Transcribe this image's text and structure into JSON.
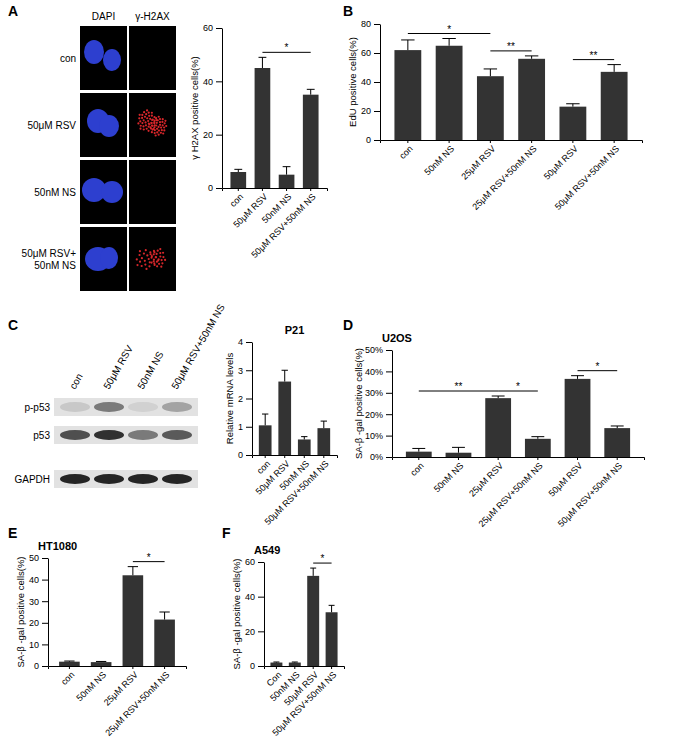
{
  "panel_labels": [
    "A",
    "B",
    "C",
    "D",
    "E",
    "F"
  ],
  "micrographs": {
    "columns": [
      "DAPI",
      "γ-H2AX"
    ],
    "rows": [
      [
        "con"
      ],
      [
        "50μM RSV"
      ],
      [
        "50nM NS"
      ],
      [
        "50μM RSV+",
        "50nM NS"
      ]
    ]
  },
  "blot": {
    "lanes": [
      "con",
      "50μM RSV",
      "50nM NS",
      "50μM RSV+50nM NS"
    ],
    "bands": [
      "p-p53",
      "p53",
      "GAPDH"
    ]
  },
  "chart_data": [
    {
      "type": "bar",
      "y_label": "γ H2AX positive cells(%)",
      "categories": [
        "con",
        "50μM RSV",
        "50nM NS",
        "50μM RSV+50nM NS"
      ],
      "values": [
        6,
        45,
        5,
        35
      ],
      "errors": [
        1,
        4,
        3,
        2
      ],
      "color": "#333333",
      "ylim": [
        0,
        60
      ],
      "yticks": [
        0,
        20,
        40,
        60
      ],
      "significance": [
        {
          "from": 1,
          "to": 3,
          "label": "*"
        }
      ]
    },
    {
      "type": "bar",
      "y_label": "EdU positive cells(%)",
      "categories": [
        "con",
        "50nM NS",
        "25μM RSV",
        "25μM RSV+50nM NS",
        "50μM RSV",
        "50μM RSV+50nM NS"
      ],
      "values": [
        62,
        65,
        44,
        56,
        23,
        47
      ],
      "errors": [
        7,
        5,
        5,
        2,
        2,
        5
      ],
      "color": "#333333",
      "ylim": [
        0,
        80
      ],
      "yticks": [
        0,
        20,
        40,
        60,
        80
      ],
      "significance": [
        {
          "from": 0,
          "to": 2,
          "label": "*"
        },
        {
          "from": 2,
          "to": 3,
          "label": "**"
        },
        {
          "from": 4,
          "to": 5,
          "label": "**"
        }
      ]
    },
    {
      "type": "bar",
      "title": "P21",
      "y_label": "Relative mRNA levels",
      "categories": [
        "con",
        "50μM RSV",
        "50nM NS",
        "50μM RSV+50nM NS"
      ],
      "values": [
        1.05,
        2.6,
        0.55,
        0.95
      ],
      "errors": [
        0.4,
        0.4,
        0.1,
        0.25
      ],
      "color": "#333333",
      "ylim": [
        0,
        4
      ],
      "yticks": [
        0,
        1,
        2,
        3,
        4
      ],
      "significance": []
    },
    {
      "type": "bar",
      "title": "U2OS",
      "y_label": "SA-β -gal positive cells(%)",
      "categories": [
        "con",
        "50nM NS",
        "25μM RSV",
        "25μM RSV+50nM NS",
        "50μM RSV",
        "50μM RSV+50nM NS"
      ],
      "values": [
        2.5,
        2,
        27.5,
        8.5,
        36.5,
        13.5
      ],
      "errors": [
        1.5,
        2.5,
        1,
        1,
        1.5,
        1
      ],
      "color": "#333333",
      "ylim": [
        0,
        50
      ],
      "yticks": [
        {
          "value": 0,
          "label": "0%"
        },
        {
          "value": 10,
          "label": "10%"
        },
        {
          "value": 20,
          "label": "20%"
        },
        {
          "value": 30,
          "label": "30%"
        },
        {
          "value": 40,
          "label": "40%"
        },
        {
          "value": 50,
          "label": "50%"
        }
      ],
      "significance": [
        {
          "from": 0,
          "to": 2,
          "label": "**"
        },
        {
          "from": 2,
          "to": 3,
          "label": "*"
        },
        {
          "from": 4,
          "to": 5,
          "label": "*"
        }
      ]
    },
    {
      "type": "bar",
      "title": "HT1080",
      "y_label": "SA-β -gal positive cells(%)",
      "categories": [
        "con",
        "50nM NS",
        "25μM RSV",
        "25μM RSV+50nM NS"
      ],
      "values": [
        2,
        1.8,
        42,
        21.5
      ],
      "errors": [
        0.3,
        0.3,
        4,
        3.5
      ],
      "color": "#333333",
      "ylim": [
        0,
        50
      ],
      "yticks": [
        0,
        10,
        20,
        30,
        40,
        50
      ],
      "significance": [
        {
          "from": 2,
          "to": 3,
          "label": "*"
        }
      ]
    },
    {
      "type": "bar",
      "title": "A549",
      "y_label": "SA-β -gal positive cells(%)",
      "categories": [
        "Con",
        "50nM NS",
        "50μM RSV",
        "50μM RSV+50nM NS"
      ],
      "values": [
        2,
        2,
        52,
        31
      ],
      "errors": [
        0.3,
        0.3,
        4.5,
        4
      ],
      "color": "#333333",
      "ylim": [
        0,
        60
      ],
      "yticks": [
        0,
        20,
        40,
        60
      ],
      "significance": [
        {
          "from": 2,
          "to": 3,
          "label": "*"
        }
      ]
    }
  ]
}
